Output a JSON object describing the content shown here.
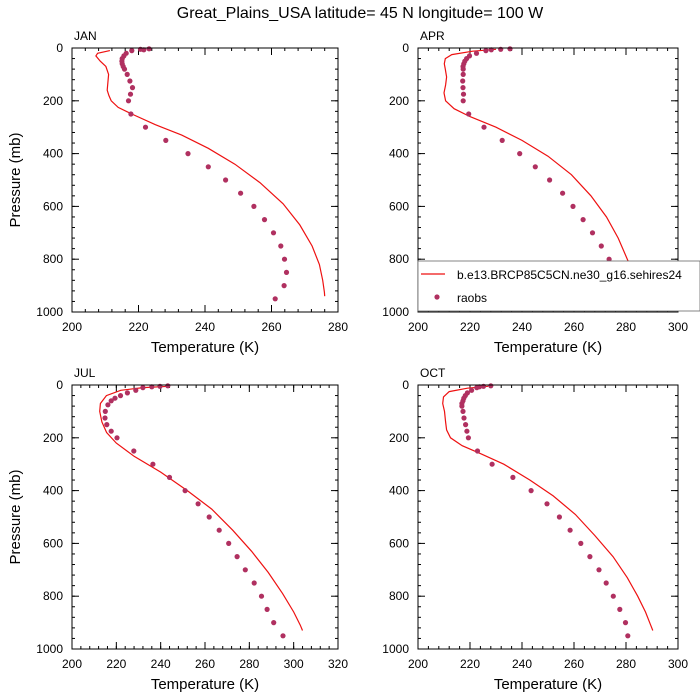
{
  "figure": {
    "title": "Great_Plains_USA  latitude= 45 N longitude= 100 W"
  },
  "colors": {
    "model": "#ee1111",
    "obs": "#b03060",
    "frame": "#000000"
  },
  "legend": {
    "model_label": "b.e13.BRCP85C5CN.ne30_g16.sehires24",
    "obs_label": "raobs",
    "placement": "lower-right of APR panel"
  },
  "chart_data": [
    {
      "type": "line",
      "panel": "JAN",
      "title": "JAN",
      "xlabel": "Temperature (K)",
      "ylabel": "Pressure (mb)",
      "xlim": [
        200,
        280
      ],
      "ylim": [
        0,
        1000
      ],
      "y_inverted": true,
      "xticks": [
        200,
        220,
        240,
        260,
        280
      ],
      "yticks": [
        0,
        200,
        400,
        600,
        800,
        1000
      ],
      "series": [
        {
          "kind": "line",
          "points": [
            [
              211.4,
              10
            ],
            [
              207.7,
              20
            ],
            [
              207.2,
              30
            ],
            [
              208.5,
              50
            ],
            [
              210.2,
              70
            ],
            [
              211.0,
              100
            ],
            [
              210.8,
              130
            ],
            [
              210.6,
              160
            ],
            [
              211.1,
              180
            ],
            [
              211.8,
              200
            ],
            [
              213.9,
              225
            ],
            [
              218.0,
              250
            ],
            [
              225.0,
              290
            ],
            [
              233.0,
              330
            ],
            [
              241.0,
              380
            ],
            [
              249.0,
              440
            ],
            [
              256.5,
              510
            ],
            [
              263.5,
              590
            ],
            [
              268.5,
              670
            ],
            [
              272.2,
              750
            ],
            [
              274.4,
              820
            ],
            [
              275.4,
              880
            ],
            [
              275.9,
              925
            ],
            [
              276.0,
              940
            ]
          ]
        },
        {
          "kind": "scatter",
          "points": [
            [
              223.2,
              3
            ],
            [
              220.6,
              5
            ],
            [
              221.6,
              7
            ],
            [
              218.0,
              10
            ],
            [
              216.3,
              20
            ],
            [
              215.6,
              30
            ],
            [
              215.1,
              40
            ],
            [
              215.0,
              50
            ],
            [
              215.1,
              60
            ],
            [
              215.4,
              70
            ],
            [
              215.8,
              80
            ],
            [
              216.6,
              100
            ],
            [
              217.4,
              125
            ],
            [
              218.2,
              150
            ],
            [
              217.6,
              175
            ],
            [
              217.0,
              200
            ],
            [
              217.7,
              250
            ],
            [
              222.1,
              300
            ],
            [
              228.2,
              350
            ],
            [
              234.9,
              400
            ],
            [
              241.0,
              450
            ],
            [
              246.2,
              500
            ],
            [
              250.7,
              550
            ],
            [
              254.7,
              600
            ],
            [
              257.9,
              650
            ],
            [
              260.6,
              700
            ],
            [
              262.8,
              750
            ],
            [
              263.9,
              800
            ],
            [
              264.5,
              850
            ],
            [
              263.8,
              900
            ],
            [
              261.1,
              950
            ]
          ]
        }
      ]
    },
    {
      "type": "line",
      "panel": "APR",
      "title": "APR",
      "xlabel": "Temperature (K)",
      "ylabel": "",
      "xlim": [
        200,
        300
      ],
      "ylim": [
        0,
        1000
      ],
      "y_inverted": true,
      "xticks": [
        200,
        220,
        240,
        260,
        280,
        300
      ],
      "yticks": [
        0,
        200,
        400,
        600,
        800,
        1000
      ],
      "series": [
        {
          "kind": "line",
          "points": [
            [
              230.0,
              5
            ],
            [
              221.0,
              12
            ],
            [
              213.0,
              25
            ],
            [
              210.5,
              40
            ],
            [
              210.1,
              60
            ],
            [
              210.5,
              80
            ],
            [
              211.0,
              110
            ],
            [
              210.6,
              140
            ],
            [
              210.0,
              170
            ],
            [
              210.6,
              200
            ],
            [
              213.9,
              230
            ],
            [
              220.0,
              260
            ],
            [
              230.0,
              300
            ],
            [
              240.0,
              350
            ],
            [
              250.0,
              410
            ],
            [
              259.0,
              480
            ],
            [
              266.5,
              560
            ],
            [
              272.5,
              640
            ],
            [
              277.0,
              720
            ],
            [
              280.5,
              800
            ],
            [
              283.1,
              860
            ],
            [
              285.0,
              900
            ],
            [
              286.5,
              940
            ]
          ]
        },
        {
          "kind": "scatter",
          "points": [
            [
              235.4,
              3
            ],
            [
              231.8,
              5
            ],
            [
              228.2,
              7
            ],
            [
              226.1,
              10
            ],
            [
              222.5,
              20
            ],
            [
              219.8,
              30
            ],
            [
              218.7,
              40
            ],
            [
              218.0,
              50
            ],
            [
              217.6,
              60
            ],
            [
              217.3,
              70
            ],
            [
              217.4,
              80
            ],
            [
              217.4,
              100
            ],
            [
              217.2,
              125
            ],
            [
              217.3,
              150
            ],
            [
              217.5,
              175
            ],
            [
              217.4,
              200
            ],
            [
              219.5,
              250
            ],
            [
              225.4,
              300
            ],
            [
              232.4,
              350
            ],
            [
              239.1,
              400
            ],
            [
              245.1,
              450
            ],
            [
              250.6,
              500
            ],
            [
              255.6,
              550
            ],
            [
              259.6,
              600
            ],
            [
              263.5,
              650
            ],
            [
              267.1,
              700
            ],
            [
              270.5,
              750
            ],
            [
              273.5,
              800
            ],
            [
              276.5,
              850
            ],
            [
              278.2,
              900
            ],
            [
              279.4,
              950
            ]
          ]
        }
      ]
    },
    {
      "type": "line",
      "panel": "JUL",
      "title": "JUL",
      "xlabel": "Temperature (K)",
      "ylabel": "Pressure (mb)",
      "xlim": [
        200,
        320
      ],
      "ylim": [
        0,
        1000
      ],
      "y_inverted": true,
      "xticks": [
        200,
        220,
        240,
        260,
        280,
        300,
        320
      ],
      "yticks": [
        0,
        200,
        400,
        600,
        800,
        1000
      ],
      "series": [
        {
          "kind": "line",
          "points": [
            [
              244.0,
              5
            ],
            [
              232.0,
              10
            ],
            [
              222.0,
              20
            ],
            [
              215.5,
              40
            ],
            [
              212.8,
              70
            ],
            [
              212.5,
              100
            ],
            [
              213.5,
              140
            ],
            [
              215.6,
              180
            ],
            [
              220.0,
              220
            ],
            [
              228.0,
              270
            ],
            [
              240.0,
              330
            ],
            [
              252.0,
              400
            ],
            [
              263.0,
              470
            ],
            [
              272.5,
              550
            ],
            [
              281.0,
              630
            ],
            [
              288.5,
              710
            ],
            [
              295.0,
              790
            ],
            [
              300.0,
              860
            ],
            [
              303.0,
              910
            ],
            [
              304.0,
              930
            ]
          ]
        },
        {
          "kind": "scatter",
          "points": [
            [
              243.2,
              3
            ],
            [
              239.7,
              5
            ],
            [
              236.0,
              7
            ],
            [
              232.0,
              10
            ],
            [
              228.8,
              20
            ],
            [
              225.0,
              30
            ],
            [
              221.9,
              40
            ],
            [
              219.4,
              50
            ],
            [
              217.7,
              60
            ],
            [
              216.2,
              75
            ],
            [
              215.0,
              100
            ],
            [
              214.9,
              125
            ],
            [
              215.7,
              150
            ],
            [
              217.7,
              175
            ],
            [
              220.3,
              200
            ],
            [
              227.9,
              250
            ],
            [
              236.5,
              300
            ],
            [
              244.0,
              350
            ],
            [
              251.0,
              400
            ],
            [
              256.9,
              450
            ],
            [
              261.9,
              500
            ],
            [
              266.4,
              550
            ],
            [
              270.7,
              600
            ],
            [
              274.5,
              650
            ],
            [
              278.2,
              700
            ],
            [
              282.2,
              750
            ],
            [
              285.5,
              800
            ],
            [
              288.0,
              850
            ],
            [
              291.0,
              900
            ],
            [
              295.2,
              950
            ]
          ]
        }
      ]
    },
    {
      "type": "line",
      "panel": "OCT",
      "title": "OCT",
      "xlabel": "Temperature (K)",
      "ylabel": "",
      "xlim": [
        200,
        300
      ],
      "ylim": [
        0,
        1000
      ],
      "y_inverted": true,
      "xticks": [
        200,
        220,
        240,
        260,
        280,
        300
      ],
      "yticks": [
        0,
        200,
        400,
        600,
        800,
        1000
      ],
      "series": [
        {
          "kind": "line",
          "points": [
            [
              227.0,
              5
            ],
            [
              219.0,
              12
            ],
            [
              212.0,
              25
            ],
            [
              209.8,
              45
            ],
            [
              209.5,
              70
            ],
            [
              210.2,
              100
            ],
            [
              210.6,
              140
            ],
            [
              211.0,
              170
            ],
            [
              212.5,
              200
            ],
            [
              217.0,
              230
            ],
            [
              224.0,
              260
            ],
            [
              233.0,
              300
            ],
            [
              243.0,
              360
            ],
            [
              252.0,
              420
            ],
            [
              260.5,
              490
            ],
            [
              268.0,
              570
            ],
            [
              275.0,
              650
            ],
            [
              280.5,
              730
            ],
            [
              284.5,
              800
            ],
            [
              287.5,
              860
            ],
            [
              289.5,
              910
            ],
            [
              290.3,
              930
            ]
          ]
        },
        {
          "kind": "scatter",
          "points": [
            [
              228.0,
              3
            ],
            [
              225.2,
              5
            ],
            [
              223.6,
              7
            ],
            [
              222.6,
              10
            ],
            [
              220.6,
              20
            ],
            [
              219.0,
              30
            ],
            [
              218.2,
              40
            ],
            [
              217.6,
              50
            ],
            [
              217.3,
              60
            ],
            [
              216.9,
              70
            ],
            [
              216.9,
              80
            ],
            [
              217.3,
              100
            ],
            [
              217.7,
              125
            ],
            [
              218.3,
              150
            ],
            [
              218.8,
              175
            ],
            [
              219.4,
              200
            ],
            [
              222.9,
              250
            ],
            [
              228.5,
              300
            ],
            [
              236.5,
              350
            ],
            [
              243.5,
              400
            ],
            [
              249.6,
              450
            ],
            [
              254.4,
              500
            ],
            [
              258.5,
              550
            ],
            [
              262.6,
              600
            ],
            [
              266.1,
              650
            ],
            [
              269.6,
              700
            ],
            [
              272.4,
              750
            ],
            [
              275.1,
              800
            ],
            [
              277.6,
              850
            ],
            [
              279.8,
              900
            ],
            [
              280.7,
              950
            ]
          ]
        }
      ]
    }
  ]
}
